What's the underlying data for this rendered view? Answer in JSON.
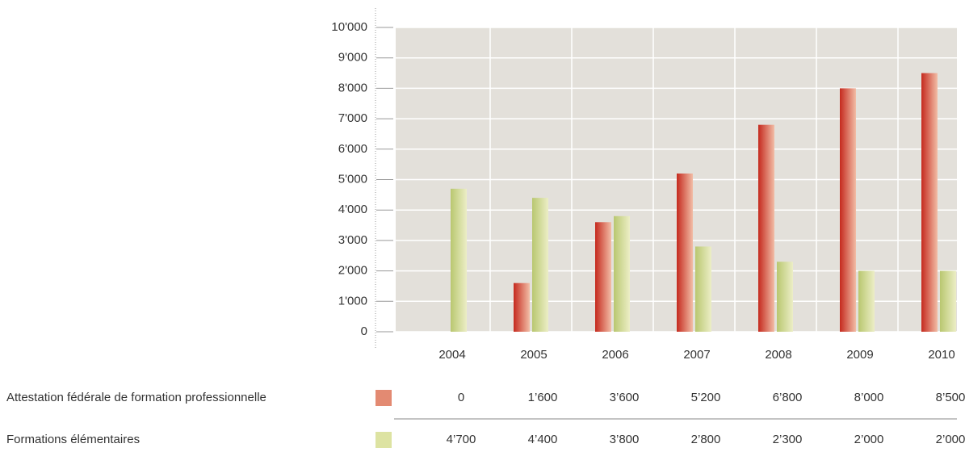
{
  "chart_data": {
    "type": "bar",
    "categories": [
      "2004",
      "2005",
      "2006",
      "2007",
      "2008",
      "2009",
      "2010"
    ],
    "series": [
      {
        "name": "Attestation fédérale de formation professionnelle",
        "color": "#e38a72",
        "values": [
          0,
          1600,
          3600,
          5200,
          6800,
          8000,
          8500
        ],
        "value_labels": [
          "0",
          "1’600",
          "3’600",
          "5’200",
          "6’800",
          "8’000",
          "8’500"
        ]
      },
      {
        "name": "Formations élémentaires",
        "color": "#dde3a2",
        "values": [
          4700,
          4400,
          3800,
          2800,
          2300,
          2000,
          2000
        ],
        "value_labels": [
          "4’700",
          "4’400",
          "3’800",
          "2’800",
          "2’300",
          "2’000",
          "2’000"
        ]
      }
    ],
    "ylim": [
      0,
      10000
    ],
    "yticks": [
      0,
      {
        "value": 1000,
        "label": "1'000"
      },
      {
        "value": 2000,
        "label": "2'000"
      },
      {
        "value": 3000,
        "label": "3'000"
      },
      {
        "value": 4000,
        "label": "4'000"
      },
      {
        "value": 5000,
        "label": "5'000"
      },
      {
        "value": 6000,
        "label": "6'000"
      },
      {
        "value": 7000,
        "label": "7'000"
      },
      {
        "value": 8000,
        "label": "8'000"
      },
      {
        "value": 9000,
        "label": "9'000"
      },
      {
        "value": 10000,
        "label": "10'000"
      }
    ],
    "grid": true
  }
}
